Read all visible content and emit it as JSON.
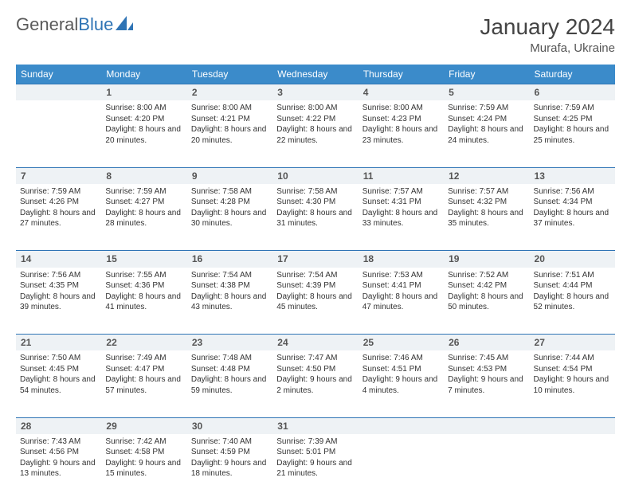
{
  "brand": {
    "name_part1": "General",
    "name_part2": "Blue"
  },
  "title": "January 2024",
  "location": "Murafa, Ukraine",
  "colors": {
    "header_bg": "#3b8bca",
    "header_text": "#ffffff",
    "daynum_bg": "#eef2f5",
    "daynum_border": "#2f74b5",
    "logo_gray": "#5a5a5a",
    "logo_blue": "#2f74b5",
    "page_bg": "#ffffff",
    "text": "#333333"
  },
  "typography": {
    "title_fontsize": 28,
    "location_fontsize": 15,
    "header_fontsize": 12,
    "daynum_fontsize": 12,
    "cell_fontsize": 10
  },
  "weekdays": [
    "Sunday",
    "Monday",
    "Tuesday",
    "Wednesday",
    "Thursday",
    "Friday",
    "Saturday"
  ],
  "weeks": [
    {
      "nums": [
        "",
        "1",
        "2",
        "3",
        "4",
        "5",
        "6"
      ],
      "cells": [
        {},
        {
          "sunrise": "Sunrise: 8:00 AM",
          "sunset": "Sunset: 4:20 PM",
          "daylight": "Daylight: 8 hours and 20 minutes."
        },
        {
          "sunrise": "Sunrise: 8:00 AM",
          "sunset": "Sunset: 4:21 PM",
          "daylight": "Daylight: 8 hours and 20 minutes."
        },
        {
          "sunrise": "Sunrise: 8:00 AM",
          "sunset": "Sunset: 4:22 PM",
          "daylight": "Daylight: 8 hours and 22 minutes."
        },
        {
          "sunrise": "Sunrise: 8:00 AM",
          "sunset": "Sunset: 4:23 PM",
          "daylight": "Daylight: 8 hours and 23 minutes."
        },
        {
          "sunrise": "Sunrise: 7:59 AM",
          "sunset": "Sunset: 4:24 PM",
          "daylight": "Daylight: 8 hours and 24 minutes."
        },
        {
          "sunrise": "Sunrise: 7:59 AM",
          "sunset": "Sunset: 4:25 PM",
          "daylight": "Daylight: 8 hours and 25 minutes."
        }
      ]
    },
    {
      "nums": [
        "7",
        "8",
        "9",
        "10",
        "11",
        "12",
        "13"
      ],
      "cells": [
        {
          "sunrise": "Sunrise: 7:59 AM",
          "sunset": "Sunset: 4:26 PM",
          "daylight": "Daylight: 8 hours and 27 minutes."
        },
        {
          "sunrise": "Sunrise: 7:59 AM",
          "sunset": "Sunset: 4:27 PM",
          "daylight": "Daylight: 8 hours and 28 minutes."
        },
        {
          "sunrise": "Sunrise: 7:58 AM",
          "sunset": "Sunset: 4:28 PM",
          "daylight": "Daylight: 8 hours and 30 minutes."
        },
        {
          "sunrise": "Sunrise: 7:58 AM",
          "sunset": "Sunset: 4:30 PM",
          "daylight": "Daylight: 8 hours and 31 minutes."
        },
        {
          "sunrise": "Sunrise: 7:57 AM",
          "sunset": "Sunset: 4:31 PM",
          "daylight": "Daylight: 8 hours and 33 minutes."
        },
        {
          "sunrise": "Sunrise: 7:57 AM",
          "sunset": "Sunset: 4:32 PM",
          "daylight": "Daylight: 8 hours and 35 minutes."
        },
        {
          "sunrise": "Sunrise: 7:56 AM",
          "sunset": "Sunset: 4:34 PM",
          "daylight": "Daylight: 8 hours and 37 minutes."
        }
      ]
    },
    {
      "nums": [
        "14",
        "15",
        "16",
        "17",
        "18",
        "19",
        "20"
      ],
      "cells": [
        {
          "sunrise": "Sunrise: 7:56 AM",
          "sunset": "Sunset: 4:35 PM",
          "daylight": "Daylight: 8 hours and 39 minutes."
        },
        {
          "sunrise": "Sunrise: 7:55 AM",
          "sunset": "Sunset: 4:36 PM",
          "daylight": "Daylight: 8 hours and 41 minutes."
        },
        {
          "sunrise": "Sunrise: 7:54 AM",
          "sunset": "Sunset: 4:38 PM",
          "daylight": "Daylight: 8 hours and 43 minutes."
        },
        {
          "sunrise": "Sunrise: 7:54 AM",
          "sunset": "Sunset: 4:39 PM",
          "daylight": "Daylight: 8 hours and 45 minutes."
        },
        {
          "sunrise": "Sunrise: 7:53 AM",
          "sunset": "Sunset: 4:41 PM",
          "daylight": "Daylight: 8 hours and 47 minutes."
        },
        {
          "sunrise": "Sunrise: 7:52 AM",
          "sunset": "Sunset: 4:42 PM",
          "daylight": "Daylight: 8 hours and 50 minutes."
        },
        {
          "sunrise": "Sunrise: 7:51 AM",
          "sunset": "Sunset: 4:44 PM",
          "daylight": "Daylight: 8 hours and 52 minutes."
        }
      ]
    },
    {
      "nums": [
        "21",
        "22",
        "23",
        "24",
        "25",
        "26",
        "27"
      ],
      "cells": [
        {
          "sunrise": "Sunrise: 7:50 AM",
          "sunset": "Sunset: 4:45 PM",
          "daylight": "Daylight: 8 hours and 54 minutes."
        },
        {
          "sunrise": "Sunrise: 7:49 AM",
          "sunset": "Sunset: 4:47 PM",
          "daylight": "Daylight: 8 hours and 57 minutes."
        },
        {
          "sunrise": "Sunrise: 7:48 AM",
          "sunset": "Sunset: 4:48 PM",
          "daylight": "Daylight: 8 hours and 59 minutes."
        },
        {
          "sunrise": "Sunrise: 7:47 AM",
          "sunset": "Sunset: 4:50 PM",
          "daylight": "Daylight: 9 hours and 2 minutes."
        },
        {
          "sunrise": "Sunrise: 7:46 AM",
          "sunset": "Sunset: 4:51 PM",
          "daylight": "Daylight: 9 hours and 4 minutes."
        },
        {
          "sunrise": "Sunrise: 7:45 AM",
          "sunset": "Sunset: 4:53 PM",
          "daylight": "Daylight: 9 hours and 7 minutes."
        },
        {
          "sunrise": "Sunrise: 7:44 AM",
          "sunset": "Sunset: 4:54 PM",
          "daylight": "Daylight: 9 hours and 10 minutes."
        }
      ]
    },
    {
      "nums": [
        "28",
        "29",
        "30",
        "31",
        "",
        "",
        ""
      ],
      "cells": [
        {
          "sunrise": "Sunrise: 7:43 AM",
          "sunset": "Sunset: 4:56 PM",
          "daylight": "Daylight: 9 hours and 13 minutes."
        },
        {
          "sunrise": "Sunrise: 7:42 AM",
          "sunset": "Sunset: 4:58 PM",
          "daylight": "Daylight: 9 hours and 15 minutes."
        },
        {
          "sunrise": "Sunrise: 7:40 AM",
          "sunset": "Sunset: 4:59 PM",
          "daylight": "Daylight: 9 hours and 18 minutes."
        },
        {
          "sunrise": "Sunrise: 7:39 AM",
          "sunset": "Sunset: 5:01 PM",
          "daylight": "Daylight: 9 hours and 21 minutes."
        },
        {},
        {},
        {}
      ]
    }
  ]
}
